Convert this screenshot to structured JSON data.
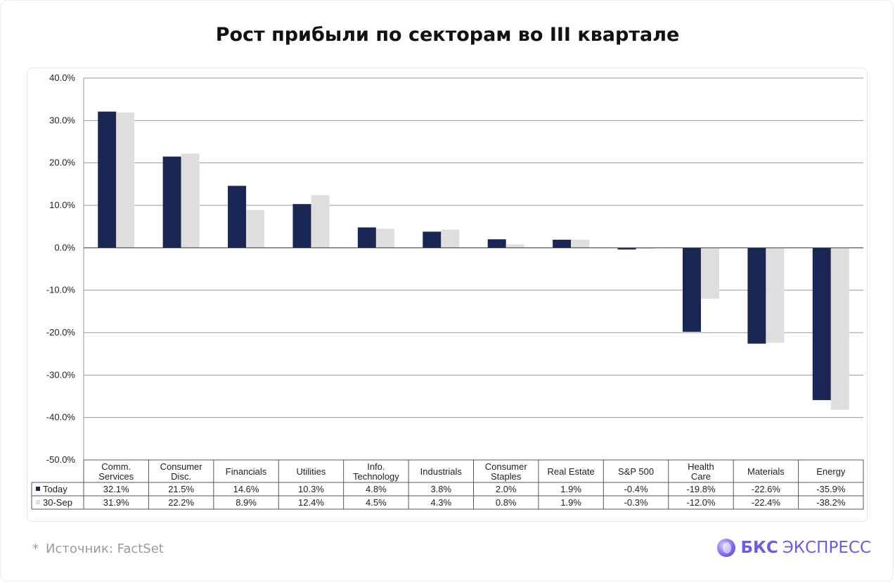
{
  "page": {
    "title": "Рост прибыли по секторам во III квартале",
    "footnote_star": "*",
    "footnote": "Источник: FactSet",
    "brand_bold": "БКС",
    "brand_light": "ЭКСПРЕСС",
    "brand_icon": "bks-logo-icon"
  },
  "chart_data": {
    "type": "bar",
    "categories": [
      [
        "Comm.",
        "Services"
      ],
      [
        "Consumer",
        "Disc."
      ],
      [
        "Financials"
      ],
      [
        "Utilities"
      ],
      [
        "Info.",
        "Technology"
      ],
      [
        "Industrials"
      ],
      [
        "Consumer",
        "Staples"
      ],
      [
        "Real Estate"
      ],
      [
        "S&P 500"
      ],
      [
        "Health",
        "Care"
      ],
      [
        "Materials"
      ],
      [
        "Energy"
      ]
    ],
    "series": [
      {
        "name": "Today",
        "color": "#1a2654",
        "values": [
          32.1,
          21.5,
          14.6,
          10.3,
          4.8,
          3.8,
          2.0,
          1.9,
          -0.4,
          -19.8,
          -22.6,
          -35.9
        ],
        "labels": [
          "32.1%",
          "21.5%",
          "14.6%",
          "10.3%",
          "4.8%",
          "3.8%",
          "2.0%",
          "1.9%",
          "-0.4%",
          "-19.8%",
          "-22.6%",
          "-35.9%"
        ]
      },
      {
        "name": "30-Sep",
        "color": "#dedede",
        "values": [
          31.9,
          22.2,
          8.9,
          12.4,
          4.5,
          4.3,
          0.8,
          1.9,
          -0.3,
          -12.0,
          -22.4,
          -38.2
        ],
        "labels": [
          "31.9%",
          "22.2%",
          "8.9%",
          "12.4%",
          "4.5%",
          "4.3%",
          "0.8%",
          "1.9%",
          "-0.3%",
          "-12.0%",
          "-22.4%",
          "-38.2%"
        ]
      }
    ],
    "ylim": [
      -50,
      40
    ],
    "yticks": [
      40,
      30,
      20,
      10,
      0,
      -10,
      -20,
      -30,
      -40,
      -50
    ],
    "ytick_labels": [
      "40.0%",
      "30.0%",
      "20.0%",
      "10.0%",
      "0.0%",
      "-10.0%",
      "-20.0%",
      "-30.0%",
      "-40.0%",
      "-50.0%"
    ],
    "grid": true,
    "legend": "data-table-below"
  }
}
